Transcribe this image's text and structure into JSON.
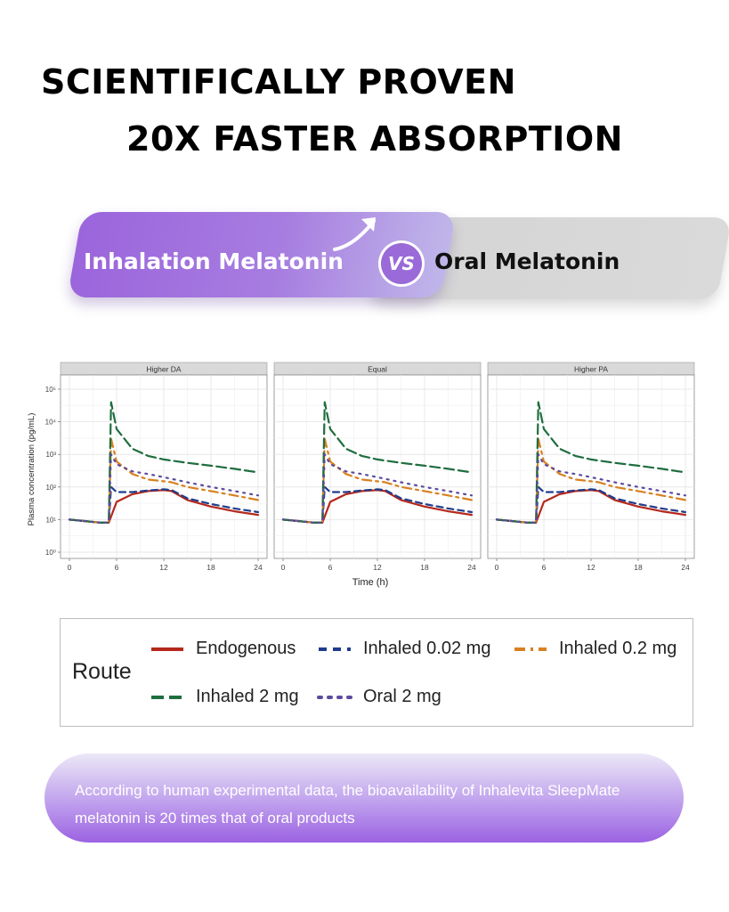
{
  "headline": {
    "line1": "SCIENTIFICALLY PROVEN",
    "line2": "20X FASTER ABSORPTION"
  },
  "comparison": {
    "left_label": "Inhalation Melatonin",
    "vs": "VS",
    "right_label": "Oral Melatonin",
    "left_gradient": [
      "#9b65dc",
      "#c0b6ea"
    ],
    "right_color": "#d6d6d6"
  },
  "chart_data": {
    "type": "line",
    "panels": [
      "Higher DA",
      "Equal",
      "Higher PA"
    ],
    "xlabel": "Time (h)",
    "ylabel": "Plasma concentration (pg/mL)",
    "y_scale": "log",
    "xlim": [
      0,
      24
    ],
    "ylim": [
      1,
      100000
    ],
    "x_ticks": [
      "0",
      "6",
      "12",
      "18",
      "24"
    ],
    "y_ticks": [
      "10^0",
      "10^1",
      "10^2",
      "10^3",
      "10^4",
      "10^5"
    ],
    "grid": true,
    "legend_title": "Route",
    "legend_position": "bottom",
    "series": [
      {
        "name": "Endogenous",
        "color": "#b5281c",
        "dash": "solid",
        "x": [
          0,
          2,
          4,
          5,
          6,
          8,
          10,
          12,
          13,
          15,
          18,
          21,
          24
        ],
        "values": [
          10,
          9,
          8,
          8,
          35,
          60,
          75,
          80,
          75,
          40,
          25,
          18,
          14
        ]
      },
      {
        "name": "Inhaled 0.02 mg",
        "color": "#1f3d8c",
        "dash": "dashed",
        "x": [
          0,
          2,
          4,
          5,
          5.3,
          6,
          8,
          10,
          12,
          13,
          15,
          18,
          21,
          24
        ],
        "values": [
          10,
          9,
          8,
          8,
          100,
          70,
          70,
          78,
          85,
          80,
          45,
          30,
          22,
          17
        ]
      },
      {
        "name": "Inhaled 0.2 mg",
        "color": "#d9801f",
        "dash": "dashed",
        "x": [
          0,
          2,
          4,
          5,
          5.3,
          6,
          8,
          10,
          12,
          13,
          15,
          18,
          21,
          24
        ],
        "values": [
          10,
          9,
          8,
          8,
          3000,
          600,
          250,
          170,
          150,
          140,
          100,
          75,
          55,
          40
        ]
      },
      {
        "name": "Inhaled 2 mg",
        "color": "#1f6e3f",
        "dash": "dashed",
        "x": [
          0,
          2,
          4,
          5,
          5.3,
          6,
          8,
          10,
          12,
          15,
          18,
          21,
          24
        ],
        "values": [
          10,
          9,
          8,
          8,
          40000,
          6000,
          1500,
          900,
          700,
          550,
          450,
          360,
          280
        ]
      },
      {
        "name": "Oral 2 mg",
        "color": "#5b4a9e",
        "dash": "dotted",
        "x": [
          0,
          2,
          4,
          5,
          5.3,
          6,
          8,
          10,
          12,
          15,
          18,
          21,
          24
        ],
        "values": [
          10,
          9,
          8,
          8,
          1000,
          500,
          300,
          250,
          200,
          140,
          100,
          75,
          55
        ]
      }
    ]
  },
  "legend": {
    "title": "Route",
    "items": [
      "Endogenous",
      "Inhaled 0.02 mg",
      "Inhaled 0.2 mg",
      "Inhaled 2 mg",
      "Oral 2 mg"
    ]
  },
  "footer": {
    "text": "According to human experimental data, the bioavailability of Inhalevita SleepMate melatonin is 20 times that of oral products"
  }
}
